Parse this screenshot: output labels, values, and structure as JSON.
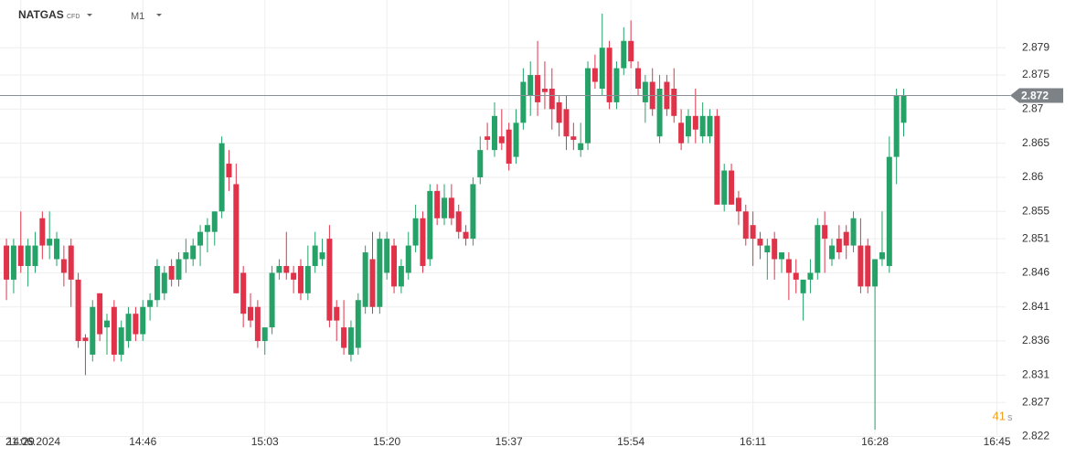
{
  "header": {
    "symbol": "NATGAS",
    "kind": "CFD",
    "timeframe": "M1"
  },
  "chart_data": {
    "type": "candlestick",
    "date": "21.06.2024",
    "x": [
      0,
      1,
      2,
      3,
      4,
      5,
      6,
      7,
      8,
      9,
      10,
      11,
      12,
      13,
      14,
      15,
      16,
      17,
      18,
      19,
      20,
      21,
      22,
      23,
      24,
      25,
      26,
      27,
      28,
      29,
      30,
      31,
      32,
      33,
      34,
      35,
      36,
      37,
      38,
      39,
      40,
      41,
      42,
      43,
      44,
      45,
      46,
      47,
      48,
      49,
      50,
      51,
      52,
      53,
      54,
      55,
      56,
      57,
      58,
      59,
      60,
      61,
      62,
      63,
      64,
      65,
      66,
      67,
      68,
      69,
      70,
      71,
      72,
      73,
      74,
      75,
      76,
      77,
      78,
      79,
      80,
      81,
      82,
      83,
      84,
      85,
      86,
      87,
      88,
      89,
      90,
      91,
      92,
      93,
      94,
      95,
      96,
      97,
      98,
      99,
      100,
      101,
      102,
      103,
      104,
      105,
      106,
      107,
      108,
      109,
      110,
      111,
      112,
      113,
      114,
      115,
      116,
      117,
      118,
      119,
      120,
      121,
      122,
      123,
      124,
      125
    ],
    "open": [
      2.85,
      2.845,
      2.85,
      2.847,
      2.847,
      2.854,
      2.85,
      2.848,
      2.848,
      2.85,
      2.845,
      2.8365,
      2.834,
      2.843,
      2.838,
      2.841,
      2.834,
      2.836,
      2.84,
      2.837,
      2.841,
      2.842,
      2.843,
      2.847,
      2.845,
      2.848,
      2.848,
      2.85,
      2.852,
      2.852,
      2.855,
      2.862,
      2.859,
      2.846,
      2.841,
      2.841,
      2.836,
      2.838,
      2.846,
      2.847,
      2.846,
      2.847,
      2.843,
      2.847,
      2.848,
      2.851,
      2.841,
      2.838,
      2.834,
      2.835,
      2.841,
      2.848,
      2.841,
      2.846,
      2.85,
      2.844,
      2.846,
      2.85,
      2.854,
      2.848,
      2.858,
      2.854,
      2.857,
      2.855,
      2.852,
      2.851,
      2.86,
      2.866,
      2.864,
      2.866,
      2.867,
      2.863,
      2.868,
      2.872,
      2.875,
      2.873,
      2.873,
      2.871,
      2.87,
      2.866,
      2.864,
      2.865,
      2.876,
      2.873,
      2.879,
      2.871,
      2.876,
      2.88,
      2.876,
      2.871,
      2.874,
      2.866,
      2.874,
      2.873,
      2.868,
      2.866,
      2.869,
      2.866,
      2.866,
      2.869,
      2.856,
      2.861,
      2.857,
      2.855,
      2.853,
      2.851,
      2.849,
      2.851,
      2.848,
      2.848,
      2.846,
      2.843,
      2.845,
      2.846,
      2.853,
      2.848,
      2.851,
      2.852,
      2.85,
      2.85,
      2.85,
      2.844,
      2.848,
      2.847,
      2.863,
      2.868
    ],
    "high": [
      2.851,
      2.851,
      2.855,
      2.851,
      2.852,
      2.855,
      2.855,
      2.852,
      2.85,
      2.851,
      2.846,
      2.837,
      2.842,
      2.843,
      2.84,
      2.842,
      2.839,
      2.841,
      2.841,
      2.842,
      2.843,
      2.848,
      2.847,
      2.848,
      2.849,
      2.851,
      2.851,
      2.853,
      2.854,
      2.855,
      2.866,
      2.864,
      2.862,
      2.847,
      2.843,
      2.842,
      2.838,
      2.847,
      2.848,
      2.852,
      2.847,
      2.848,
      2.85,
      2.852,
      2.851,
      2.853,
      2.842,
      2.842,
      2.839,
      2.843,
      2.85,
      2.852,
      2.852,
      2.852,
      2.851,
      2.848,
      2.852,
      2.856,
      2.855,
      2.859,
      2.859,
      2.859,
      2.859,
      2.856,
      2.853,
      2.86,
      2.866,
      2.868,
      2.871,
      2.87,
      2.868,
      2.87,
      2.876,
      2.877,
      2.88,
      2.877,
      2.876,
      2.872,
      2.872,
      2.868,
      2.868,
      2.877,
      2.878,
      2.884,
      2.88,
      2.877,
      2.882,
      2.883,
      2.877,
      2.875,
      2.876,
      2.875,
      2.875,
      2.876,
      2.87,
      2.87,
      2.873,
      2.871,
      2.87,
      2.87,
      2.862,
      2.862,
      2.858,
      2.856,
      2.855,
      2.852,
      2.851,
      2.852,
      2.849,
      2.849,
      2.848,
      2.845,
      2.848,
      2.854,
      2.855,
      2.851,
      2.853,
      2.853,
      2.855,
      2.854,
      2.851,
      2.848,
      2.855,
      2.866,
      2.873,
      2.873
    ],
    "low": [
      2.842,
      2.843,
      2.846,
      2.844,
      2.846,
      2.848,
      2.848,
      2.847,
      2.844,
      2.841,
      2.835,
      2.831,
      2.833,
      2.836,
      2.834,
      2.833,
      2.833,
      2.835,
      2.836,
      2.836,
      2.839,
      2.841,
      2.842,
      2.844,
      2.844,
      2.846,
      2.847,
      2.847,
      2.849,
      2.85,
      2.854,
      2.858,
      2.843,
      2.838,
      2.838,
      2.835,
      2.834,
      2.837,
      2.845,
      2.845,
      2.843,
      2.842,
      2.842,
      2.846,
      2.847,
      2.838,
      2.836,
      2.834,
      2.833,
      2.834,
      2.84,
      2.84,
      2.84,
      2.845,
      2.843,
      2.843,
      2.845,
      2.849,
      2.846,
      2.847,
      2.853,
      2.853,
      2.853,
      2.851,
      2.85,
      2.85,
      2.859,
      2.864,
      2.863,
      2.864,
      2.861,
      2.862,
      2.867,
      2.869,
      2.869,
      2.87,
      2.867,
      2.866,
      2.864,
      2.864,
      2.863,
      2.864,
      2.873,
      2.872,
      2.87,
      2.87,
      2.875,
      2.876,
      2.872,
      2.868,
      2.869,
      2.865,
      2.869,
      2.868,
      2.864,
      2.865,
      2.865,
      2.865,
      2.865,
      2.856,
      2.855,
      2.856,
      2.853,
      2.85,
      2.847,
      2.848,
      2.845,
      2.845,
      2.846,
      2.842,
      2.843,
      2.839,
      2.843,
      2.845,
      2.846,
      2.847,
      2.848,
      2.848,
      2.849,
      2.843,
      2.843,
      2.823,
      2.847,
      2.846,
      2.859,
      2.866
    ],
    "close": [
      2.845,
      2.85,
      2.847,
      2.85,
      2.85,
      2.85,
      2.851,
      2.851,
      2.846,
      2.845,
      2.836,
      2.836,
      2.841,
      2.837,
      2.839,
      2.834,
      2.838,
      2.84,
      2.837,
      2.841,
      2.842,
      2.847,
      2.846,
      2.845,
      2.848,
      2.849,
      2.85,
      2.852,
      2.853,
      2.855,
      2.865,
      2.86,
      2.843,
      2.84,
      2.839,
      2.836,
      2.838,
      2.846,
      2.847,
      2.846,
      2.845,
      2.843,
      2.847,
      2.85,
      2.849,
      2.839,
      2.839,
      2.835,
      2.838,
      2.842,
      2.849,
      2.841,
      2.851,
      2.851,
      2.844,
      2.847,
      2.85,
      2.854,
      2.847,
      2.858,
      2.854,
      2.857,
      2.854,
      2.852,
      2.851,
      2.859,
      2.864,
      2.8655,
      2.869,
      2.865,
      2.862,
      2.868,
      2.874,
      2.875,
      2.871,
      2.8725,
      2.87,
      2.868,
      2.866,
      2.8655,
      2.865,
      2.876,
      2.874,
      2.879,
      2.871,
      2.876,
      2.88,
      2.877,
      2.873,
      2.874,
      2.87,
      2.873,
      2.87,
      2.869,
      2.865,
      2.869,
      2.867,
      2.869,
      2.869,
      2.856,
      2.861,
      2.856,
      2.855,
      2.851,
      2.851,
      2.85,
      2.85,
      2.848,
      2.849,
      2.846,
      2.845,
      2.845,
      2.846,
      2.853,
      2.851,
      2.85,
      2.849,
      2.85,
      2.854,
      2.844,
      2.844,
      2.848,
      2.849,
      2.863,
      2.872,
      2.872
    ],
    "up_color": "#26a269",
    "down_color": "#e0334a",
    "ylim": [
      2.8222,
      2.886
    ],
    "yticks": [
      2.879,
      2.875,
      2.87,
      2.865,
      2.86,
      2.855,
      2.851,
      2.846,
      2.841,
      2.836,
      2.831,
      2.827,
      2.822
    ],
    "xlim": [
      -0.9,
      139.2
    ],
    "xticks": [
      {
        "value": 2,
        "label": "14:29"
      },
      {
        "value": 19,
        "label": "14:46"
      },
      {
        "value": 36,
        "label": "15:03"
      },
      {
        "value": 53,
        "label": "15:20"
      },
      {
        "value": 70,
        "label": "15:37"
      },
      {
        "value": 87,
        "label": "15:54"
      },
      {
        "value": 104,
        "label": "16:11"
      },
      {
        "value": 121,
        "label": "16:28"
      },
      {
        "value": 138,
        "label": "16:45"
      }
    ],
    "grid": true,
    "last_price": 2.872,
    "countdown": 41,
    "countdown_unit": "s"
  }
}
